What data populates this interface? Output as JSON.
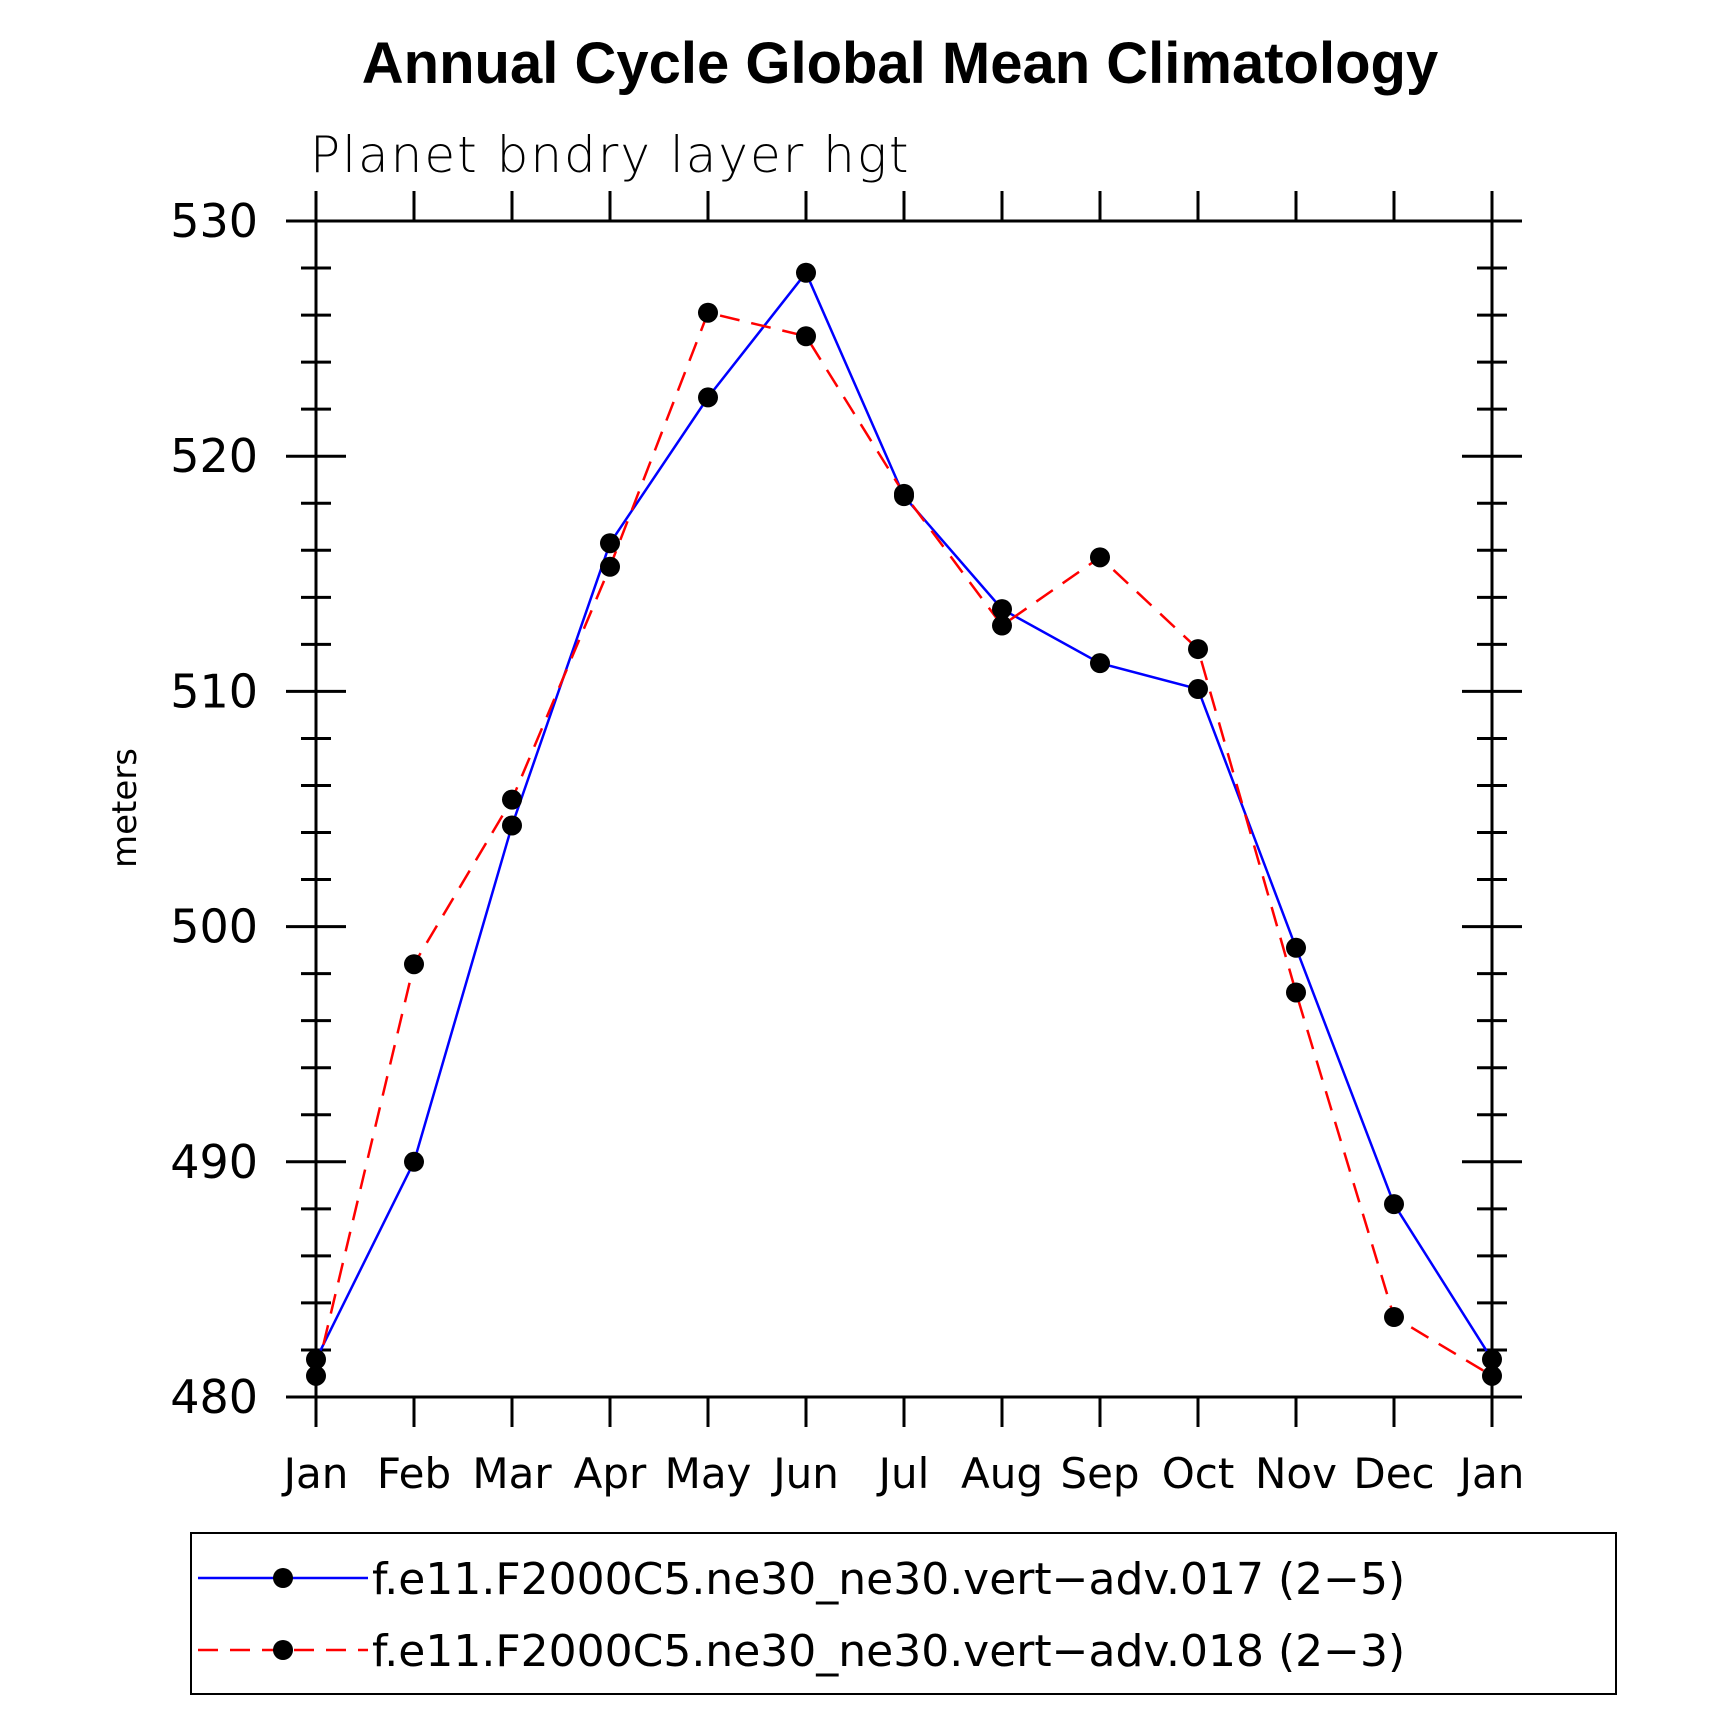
{
  "chart_data": {
    "type": "line",
    "title": "Annual Cycle Global Mean Climatology",
    "subtitle": "Planet bndry layer hgt",
    "ylabel": "meters",
    "xlabel": "",
    "categories": [
      "Jan",
      "Feb",
      "Mar",
      "Apr",
      "May",
      "Jun",
      "Jul",
      "Aug",
      "Sep",
      "Oct",
      "Nov",
      "Dec",
      "Jan"
    ],
    "ylim": [
      480,
      530
    ],
    "yticks": [
      480,
      490,
      500,
      510,
      520,
      530
    ],
    "yminor_step": 2,
    "grid": false,
    "legend_position": "bottom",
    "series": [
      {
        "name": "f.e11.F2000C5.ne30_ne30.vert−adv.017 (2−5)",
        "color": "#0000ff",
        "dash": "solid",
        "marker": "filled-circle",
        "values": [
          481.6,
          490.0,
          504.3,
          516.3,
          522.5,
          527.8,
          518.3,
          513.5,
          511.2,
          510.1,
          499.1,
          488.2,
          481.6
        ]
      },
      {
        "name": "f.e11.F2000C5.ne30_ne30.vert−adv.018 (2−3)",
        "color": "#ff0000",
        "dash": "dashed",
        "marker": "filled-circle",
        "values": [
          480.9,
          498.4,
          505.4,
          515.3,
          526.1,
          525.1,
          518.4,
          512.8,
          515.7,
          511.8,
          497.2,
          483.4,
          480.9
        ]
      }
    ]
  }
}
